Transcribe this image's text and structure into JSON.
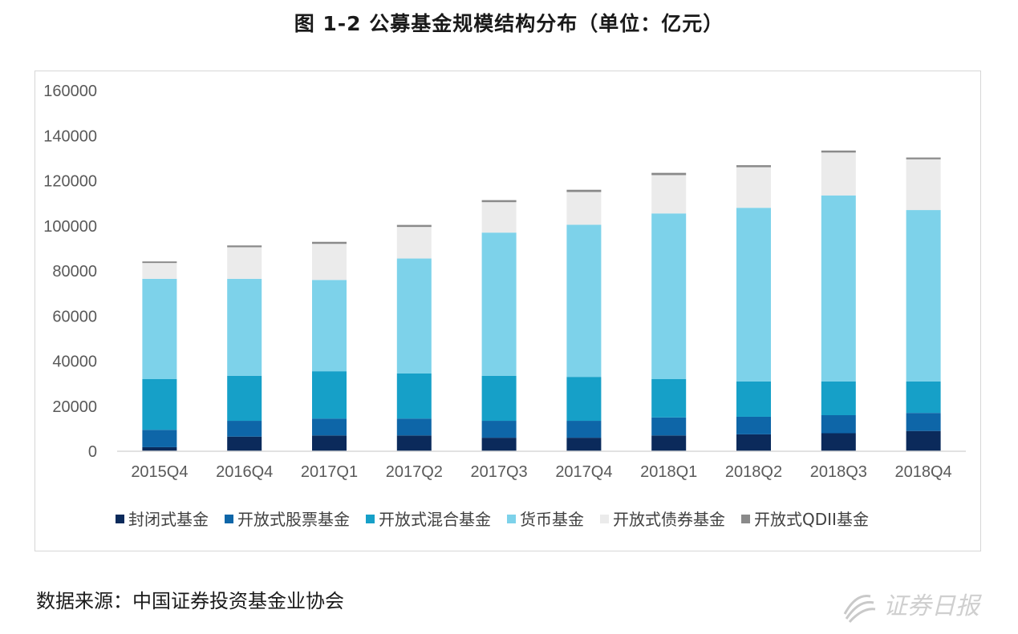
{
  "title": "图 1-2 公募基金规模结构分布（单位：亿元）",
  "source": "数据来源：中国证券投资基金业协会",
  "watermark": "证券日报",
  "chart_data": {
    "type": "bar",
    "stacked": true,
    "categories": [
      "2015Q4",
      "2016Q4",
      "2017Q1",
      "2017Q2",
      "2017Q3",
      "2017Q4",
      "2018Q1",
      "2018Q2",
      "2018Q3",
      "2018Q4"
    ],
    "ylim": [
      0,
      160000
    ],
    "yticks": [
      0,
      20000,
      40000,
      60000,
      80000,
      100000,
      120000,
      140000,
      160000
    ],
    "grid": false,
    "legend": "bottom",
    "series": [
      {
        "name": "封闭式基金",
        "color": "#0b2a5b",
        "values": [
          1800,
          6500,
          7000,
          7000,
          6000,
          6000,
          7000,
          7500,
          8000,
          9000
        ]
      },
      {
        "name": "开放式股票基金",
        "color": "#0e66a8",
        "values": [
          7700,
          7000,
          7500,
          7500,
          7500,
          7500,
          8000,
          7800,
          8000,
          8000
        ]
      },
      {
        "name": "开放式混合基金",
        "color": "#16a0c8",
        "values": [
          22500,
          20000,
          21000,
          20000,
          20000,
          19500,
          17000,
          15700,
          15000,
          14000
        ]
      },
      {
        "name": "货币基金",
        "color": "#7dd2ea",
        "values": [
          44500,
          43000,
          40500,
          51000,
          63500,
          67500,
          73500,
          77000,
          82500,
          76000
        ]
      },
      {
        "name": "开放式债券基金",
        "color": "#ebebeb",
        "values": [
          7000,
          14000,
          16000,
          14000,
          13500,
          14500,
          17000,
          18000,
          19000,
          22500
        ]
      },
      {
        "name": "开放式QDII基金",
        "color": "#8a8a8a",
        "values": [
          700,
          800,
          900,
          900,
          900,
          1000,
          1000,
          900,
          900,
          800
        ]
      }
    ]
  }
}
